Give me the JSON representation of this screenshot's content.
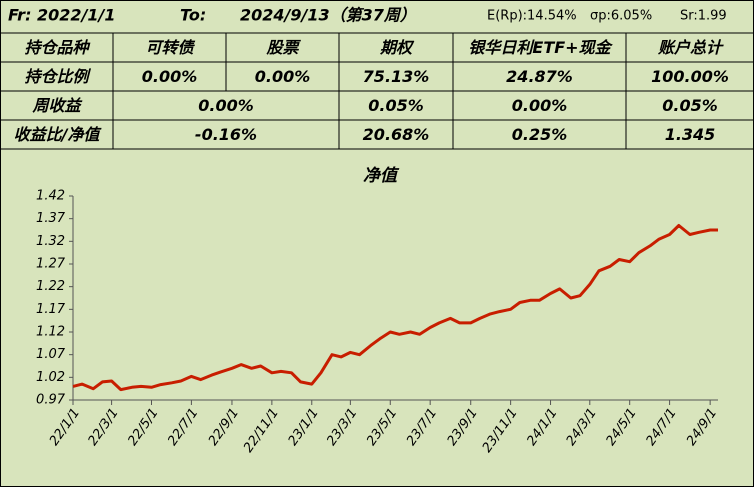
{
  "header": {
    "from": "Fr: 2022/1/1",
    "to_label": "To:",
    "to": "2024/9/13（第37周）",
    "er": "E(Rp):14.54%",
    "sp": "σp:6.05%",
    "sr": "Sr:1.99"
  },
  "table": {
    "rows": [
      [
        "持仓品种",
        "可转债",
        "股票",
        "期权",
        "银华日利ETF+现金",
        "账户总计"
      ],
      [
        "持仓比例",
        "0.00%",
        "0.00%",
        "75.13%",
        "24.87%",
        "100.00%"
      ],
      [
        "周收益",
        "0.00%",
        "0.05%",
        "0.00%",
        "0.05%"
      ],
      [
        "收益比/净值",
        "-0.16%",
        "20.68%",
        "0.25%",
        "1.345"
      ]
    ]
  },
  "chart_data": {
    "type": "line",
    "title": "净值",
    "color": "#c81e00",
    "x": [
      "22/1/1",
      "22/1/15",
      "22/2/1",
      "22/2/15",
      "22/3/1",
      "22/3/15",
      "22/4/1",
      "22/4/15",
      "22/5/1",
      "22/5/15",
      "22/6/1",
      "22/6/15",
      "22/7/1",
      "22/7/15",
      "22/8/1",
      "22/8/15",
      "22/9/1",
      "22/9/15",
      "22/10/1",
      "22/10/15",
      "22/11/1",
      "22/11/15",
      "22/12/1",
      "22/12/15",
      "23/1/1",
      "23/1/15",
      "23/2/1",
      "23/2/15",
      "23/3/1",
      "23/3/15",
      "23/4/1",
      "23/4/15",
      "23/5/1",
      "23/5/15",
      "23/6/1",
      "23/6/15",
      "23/7/1",
      "23/7/15",
      "23/8/1",
      "23/8/15",
      "23/9/1",
      "23/9/15",
      "23/10/1",
      "23/10/15",
      "23/11/1",
      "23/11/15",
      "23/12/1",
      "23/12/15",
      "24/1/1",
      "24/1/15",
      "24/2/1",
      "24/2/15",
      "24/3/1",
      "24/3/15",
      "24/4/1",
      "24/4/15",
      "24/5/1",
      "24/5/15",
      "24/6/1",
      "24/6/15",
      "24/7/1",
      "24/7/15",
      "24/8/1",
      "24/8/15",
      "24/9/1",
      "24/9/13"
    ],
    "values": [
      1.0,
      1.005,
      0.995,
      1.01,
      1.012,
      0.993,
      0.998,
      1.0,
      0.998,
      1.004,
      1.008,
      1.012,
      1.022,
      1.015,
      1.025,
      1.032,
      1.04,
      1.048,
      1.04,
      1.045,
      1.03,
      1.033,
      1.03,
      1.01,
      1.005,
      1.03,
      1.07,
      1.065,
      1.075,
      1.07,
      1.09,
      1.105,
      1.12,
      1.115,
      1.12,
      1.115,
      1.13,
      1.14,
      1.15,
      1.14,
      1.14,
      1.15,
      1.16,
      1.165,
      1.17,
      1.185,
      1.19,
      1.19,
      1.205,
      1.215,
      1.195,
      1.2,
      1.225,
      1.255,
      1.265,
      1.28,
      1.275,
      1.295,
      1.31,
      1.325,
      1.335,
      1.355,
      1.335,
      1.34,
      1.345,
      1.345
    ],
    "xlim": [
      "22/1/1",
      "24/9/13"
    ],
    "xticks": [
      "22/1/1",
      "22/3/1",
      "22/5/1",
      "22/7/1",
      "22/9/1",
      "22/11/1",
      "23/1/1",
      "23/3/1",
      "23/5/1",
      "23/7/1",
      "23/9/1",
      "23/11/1",
      "24/1/1",
      "24/3/1",
      "24/5/1",
      "24/7/1",
      "24/9/1"
    ],
    "ylim": [
      0.97,
      1.42
    ],
    "yticks": [
      0.97,
      1.02,
      1.07,
      1.12,
      1.17,
      1.22,
      1.27,
      1.32,
      1.37,
      1.42
    ]
  }
}
